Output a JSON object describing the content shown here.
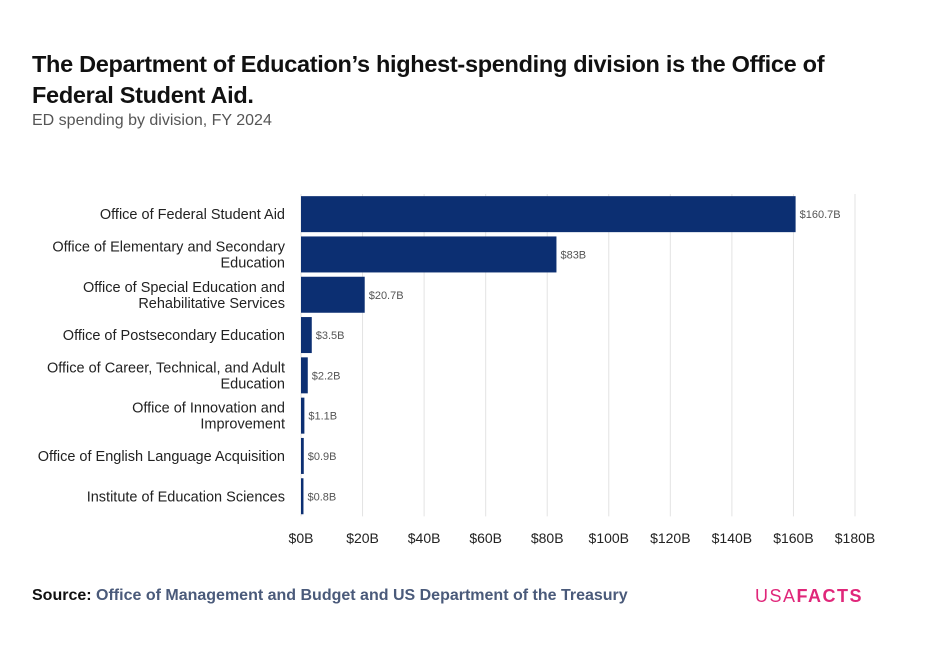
{
  "title": "The Department of Education’s highest-spending division is the Office of Federal Student Aid.",
  "subtitle": "ED spending by division, FY 2024",
  "source_label": "Source:",
  "source_text": "Office of Management and Budget and US Department of the Treasury",
  "logo": {
    "part1": "USA",
    "part2": "FACTS"
  },
  "colors": {
    "bar": "#0c2f72",
    "grid": "#e3e3e3",
    "text": "#222222",
    "label": "#555555",
    "brand": "#e0277a"
  },
  "chart_data": {
    "type": "bar",
    "orientation": "horizontal",
    "categories": [
      "Office of Federal Student Aid",
      "Office of Elementary and Secondary Education",
      "Office of Special Education and Rehabilitative Services",
      "Office of Postsecondary Education",
      "Office of Career, Technical, and Adult Education",
      "Office of Innovation and Improvement",
      "Office of English Language Acquisition",
      "Institute of Education Sciences"
    ],
    "category_lines": [
      [
        "Office of Federal Student Aid"
      ],
      [
        "Office of Elementary and Secondary",
        "Education"
      ],
      [
        "Office of Special Education and",
        "Rehabilitative Services"
      ],
      [
        "Office of Postsecondary Education"
      ],
      [
        "Office of Career, Technical, and Adult",
        "Education"
      ],
      [
        "Office of Innovation and",
        "Improvement"
      ],
      [
        "Office of English Language Acquisition"
      ],
      [
        "Institute of Education Sciences"
      ]
    ],
    "values": [
      160.7,
      83,
      20.7,
      3.5,
      2.2,
      1.1,
      0.9,
      0.8
    ],
    "data_labels": [
      "$160.7B",
      "$83B",
      "$20.7B",
      "$3.5B",
      "$2.2B",
      "$1.1B",
      "$0.9B",
      "$0.8B"
    ],
    "xlim": [
      0,
      180
    ],
    "xticks": [
      0,
      20,
      40,
      60,
      80,
      100,
      120,
      140,
      160,
      180
    ],
    "xtick_labels": [
      "$0B",
      "$20B",
      "$40B",
      "$60B",
      "$80B",
      "$100B",
      "$120B",
      "$140B",
      "$160B",
      "$180B"
    ],
    "grid": true
  }
}
